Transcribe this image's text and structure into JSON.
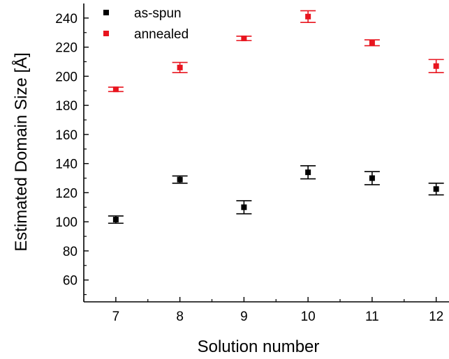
{
  "chart_data": {
    "type": "scatter",
    "title": "",
    "xlabel": "Solution number",
    "ylabel": "Estimated Domain Size [Å]",
    "x_ticks": [
      7,
      8,
      9,
      10,
      11,
      12
    ],
    "y_ticks": [
      60,
      80,
      100,
      120,
      140,
      160,
      180,
      200,
      220,
      240
    ],
    "xlim": [
      6.5,
      12.2
    ],
    "ylim": [
      45,
      250
    ],
    "grid": false,
    "legend": "top-left",
    "series": [
      {
        "name": "as-spun",
        "color": "#000000",
        "points": [
          {
            "x": 7,
            "y": 101.5,
            "err": 2.5
          },
          {
            "x": 8,
            "y": 129,
            "err": 2.5
          },
          {
            "x": 9,
            "y": 110,
            "err": 4.5
          },
          {
            "x": 10,
            "y": 134,
            "err": 4.5
          },
          {
            "x": 11,
            "y": 130,
            "err": 4.5
          },
          {
            "x": 12,
            "y": 122.5,
            "err": 4
          }
        ]
      },
      {
        "name": "annealed",
        "color": "#e8141e",
        "points": [
          {
            "x": 7,
            "y": 191,
            "err": 1.5
          },
          {
            "x": 8,
            "y": 206,
            "err": 3.5
          },
          {
            "x": 9,
            "y": 226,
            "err": 1.5
          },
          {
            "x": 10,
            "y": 241,
            "err": 4
          },
          {
            "x": 11,
            "y": 223,
            "err": 2
          },
          {
            "x": 12,
            "y": 207,
            "err": 4.5
          }
        ]
      }
    ]
  }
}
